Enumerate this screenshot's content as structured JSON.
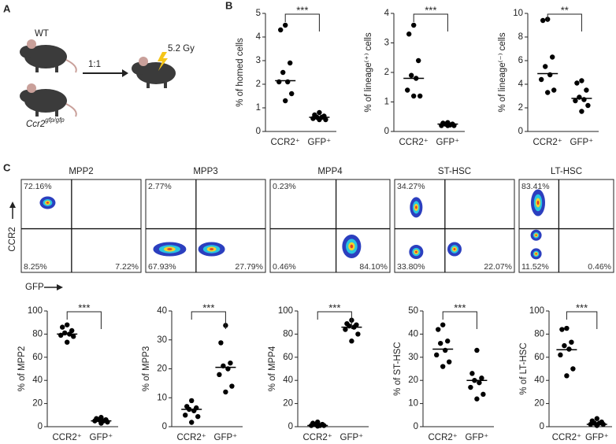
{
  "panel_labels": [
    "A",
    "B",
    "C"
  ],
  "diagram": {
    "wt": "WT",
    "ratio": "1:1",
    "dose": "5.2 Gy",
    "knockout": {
      "text": "Ccr2",
      "sup": "gfp/gfp"
    }
  },
  "flow": {
    "y_label": "CCR2",
    "x_label": "GFP",
    "plots": [
      {
        "title": "MPP2",
        "upper_left": "72.16%",
        "lower_left": "8.25%",
        "lower_right": "7.22%"
      },
      {
        "title": "MPP3",
        "upper_left": "2.77%",
        "lower_left": "67.93%",
        "lower_right": "27.79%"
      },
      {
        "title": "MPP4",
        "upper_left": "0.23%",
        "lower_left": "0.46%",
        "lower_right": "84.10%"
      },
      {
        "title": "ST-HSC",
        "upper_left": "34.27%",
        "lower_left": "33.80%",
        "lower_right": "22.07%"
      },
      {
        "title": "LT-HSC",
        "upper_left": "83.41%",
        "lower_left": "11.52%",
        "lower_right": "0.46%"
      }
    ]
  },
  "chart_data": [
    {
      "type": "dot",
      "y_label": "% of homed cells",
      "categories": [
        "CCR2⁺",
        "GFP⁺"
      ],
      "significance": "***",
      "values": [
        [
          4.5,
          4.3,
          2.9,
          2.5,
          2.1,
          2.1,
          1.6,
          1.3
        ],
        [
          0.8,
          0.7,
          0.65,
          0.6,
          0.6,
          0.55,
          0.5,
          0.5
        ]
      ],
      "medians": [
        2.15,
        0.6
      ],
      "ylim": [
        0,
        5
      ],
      "yticks": [
        0,
        1,
        2,
        3,
        4,
        5
      ],
      "color": "#000000"
    },
    {
      "type": "dot",
      "y_label": "% of lineage⁽⁺⁾ cells",
      "categories": [
        "CCR2⁺",
        "GFP⁺"
      ],
      "significance": "***",
      "values": [
        [
          3.6,
          3.3,
          2.4,
          1.9,
          1.8,
          1.4,
          1.2,
          1.2
        ],
        [
          0.3,
          0.28,
          0.25,
          0.25,
          0.22,
          0.2,
          0.2,
          0.2
        ]
      ],
      "medians": [
        1.8,
        0.25
      ],
      "ylim": [
        0,
        4
      ],
      "yticks": [
        0,
        1,
        2,
        3,
        4
      ],
      "color": "#000000"
    },
    {
      "type": "dot",
      "y_label": "% of lineage⁽⁻⁾ cells",
      "categories": [
        "CCR2⁺",
        "GFP⁺"
      ],
      "significance": "**",
      "values": [
        [
          9.5,
          9.4,
          6.3,
          5.5,
          4.8,
          4.4,
          3.5,
          3.3
        ],
        [
          4.3,
          4.1,
          3.5,
          2.9,
          2.7,
          2.6,
          2.2,
          1.7
        ]
      ],
      "medians": [
        4.9,
        2.8
      ],
      "ylim": [
        0,
        10
      ],
      "yticks": [
        0,
        2,
        4,
        6,
        8,
        10
      ],
      "color": "#000000"
    },
    {
      "type": "dot",
      "y_label": "% of MPP2",
      "categories": [
        "CCR2⁺",
        "GFP⁺"
      ],
      "significance": "***",
      "values": [
        [
          88,
          86,
          83,
          81,
          80,
          79,
          78,
          73
        ],
        [
          8,
          7,
          6,
          6,
          5,
          5,
          4,
          3
        ]
      ],
      "medians": [
        80,
        5
      ],
      "ylim": [
        0,
        100
      ],
      "yticks": [
        0,
        20,
        40,
        60,
        80,
        100
      ],
      "color": "#000000"
    },
    {
      "type": "dot",
      "y_label": "% of MPP3",
      "categories": [
        "CCR2⁺",
        "GFP⁺"
      ],
      "significance": "***",
      "values": [
        [
          9,
          7,
          6.5,
          6,
          5.5,
          4,
          3.5,
          1.5
        ],
        [
          35,
          29,
          22,
          21,
          20,
          18,
          14,
          12
        ]
      ],
      "medians": [
        6,
        20.5
      ],
      "ylim": [
        0,
        40
      ],
      "yticks": [
        0,
        10,
        20,
        30,
        40
      ],
      "color": "#000000"
    },
    {
      "type": "dot",
      "y_label": "% of MPP4",
      "categories": [
        "CCR2⁺",
        "GFP⁺"
      ],
      "significance": "***",
      "values": [
        [
          4,
          3,
          2,
          2,
          1,
          1,
          1,
          0.5
        ],
        [
          92,
          89,
          88,
          87,
          86,
          84,
          80,
          74
        ]
      ],
      "medians": [
        1,
        86
      ],
      "ylim": [
        0,
        100
      ],
      "yticks": [
        0,
        20,
        40,
        60,
        80,
        100
      ],
      "color": "#000000"
    },
    {
      "type": "dot",
      "y_label": "% of ST-HSC",
      "categories": [
        "CCR2⁺",
        "GFP⁺"
      ],
      "significance": "***",
      "values": [
        [
          44,
          42,
          37,
          36,
          33,
          31,
          28,
          26
        ],
        [
          33,
          23,
          21,
          20,
          19,
          17,
          14,
          12
        ]
      ],
      "medians": [
        33.5,
        20
      ],
      "ylim": [
        0,
        50
      ],
      "yticks": [
        0,
        10,
        20,
        30,
        40,
        50
      ],
      "color": "#000000"
    },
    {
      "type": "dot",
      "y_label": "% of LT-HSC",
      "categories": [
        "CCR2⁺",
        "GFP⁺"
      ],
      "significance": "***",
      "values": [
        [
          85,
          84,
          73,
          70,
          67,
          62,
          50,
          44
        ],
        [
          7,
          5,
          4,
          3,
          3,
          2,
          2,
          1
        ]
      ],
      "medians": [
        66.5,
        2
      ],
      "ylim": [
        0,
        100
      ],
      "yticks": [
        0,
        20,
        40,
        60,
        80,
        100
      ],
      "color": "#000000"
    }
  ]
}
